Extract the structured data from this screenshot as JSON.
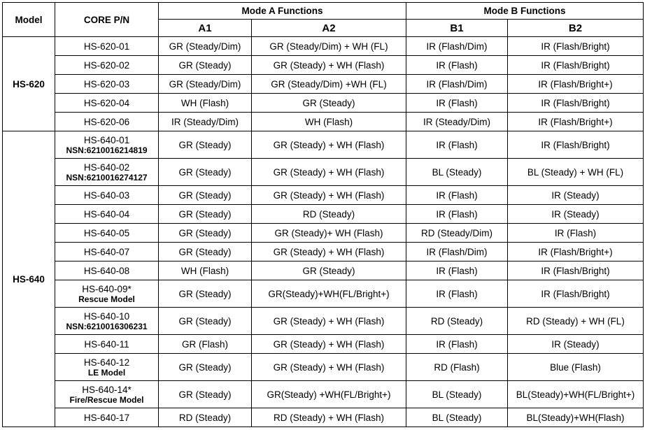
{
  "headers": {
    "model": "Model",
    "core_pn": "CORE P/N",
    "mode_a": "Mode A Functions",
    "mode_b": "Mode B Functions",
    "a1": "A1",
    "a2": "A2",
    "b1": "B1",
    "b2": "B2"
  },
  "groups": [
    {
      "model": "HS-620",
      "rows": [
        {
          "pn": "HS-620-01",
          "sub": "",
          "a1": "GR (Steady/Dim)",
          "a2": "GR (Steady/Dim) + WH (FL)",
          "b1": "IR (Flash/Dim)",
          "b2": "IR (Flash/Bright)"
        },
        {
          "pn": "HS-620-02",
          "sub": "",
          "a1": "GR (Steady)",
          "a2": "GR (Steady) + WH (Flash)",
          "b1": "IR (Flash)",
          "b2": "IR (Flash/Bright)"
        },
        {
          "pn": "HS-620-03",
          "sub": "",
          "a1": "GR (Steady/Dim)",
          "a2": "GR (Steady/Dim) +WH (FL)",
          "b1": "IR (Flash/Dim)",
          "b2": "IR (Flash/Bright+)"
        },
        {
          "pn": "HS-620-04",
          "sub": "",
          "a1": "WH (Flash)",
          "a2": "GR (Steady)",
          "b1": "IR (Flash)",
          "b2": "IR (Flash/Bright)"
        },
        {
          "pn": "HS-620-06",
          "sub": "",
          "a1": "IR (Steady/Dim)",
          "a2": "WH (Flash)",
          "b1": "IR (Steady/Dim)",
          "b2": "IR (Flash/Bright+)"
        }
      ]
    },
    {
      "model": "HS-640",
      "rows": [
        {
          "pn": "HS-640-01",
          "sub": "NSN:6210016214819",
          "a1": "GR (Steady)",
          "a2": "GR (Steady) + WH (Flash)",
          "b1": "IR (Flash)",
          "b2": "IR (Flash/Bright)"
        },
        {
          "pn": "HS-640-02",
          "sub": "NSN:6210016274127",
          "a1": "GR (Steady)",
          "a2": "GR (Steady) + WH (Flash)",
          "b1": "BL (Steady)",
          "b2": "BL (Steady) + WH (FL)"
        },
        {
          "pn": "HS-640-03",
          "sub": "",
          "a1": "GR (Steady)",
          "a2": "GR (Steady) + WH (Flash)",
          "b1": "IR (Flash)",
          "b2": "IR (Steady)"
        },
        {
          "pn": "HS-640-04",
          "sub": "",
          "a1": "GR (Steady)",
          "a2": "RD (Steady)",
          "b1": "IR (Flash)",
          "b2": "IR (Steady)"
        },
        {
          "pn": "HS-640-05",
          "sub": "",
          "a1": "GR (Steady)",
          "a2": "GR (Steady)+ WH (Flash)",
          "b1": "RD (Steady/Dim)",
          "b2": "IR (Flash)"
        },
        {
          "pn": "HS-640-07",
          "sub": "",
          "a1": "GR (Steady)",
          "a2": "GR (Steady) + WH (Flash)",
          "b1": "IR (Flash/Dim)",
          "b2": "IR (Flash/Bright+)"
        },
        {
          "pn": "HS-640-08",
          "sub": "",
          "a1": "WH  (Flash)",
          "a2": "GR (Steady)",
          "b1": "IR (Flash)",
          "b2": "IR (Flash/Bright)"
        },
        {
          "pn": "HS-640-09*",
          "sub": "Rescue Model",
          "a1": "GR (Steady)",
          "a2": "GR(Steady)+WH(FL/Bright+)",
          "b1": "IR (Flash)",
          "b2": "IR (Flash/Bright)"
        },
        {
          "pn": "HS-640-10",
          "sub": "NSN:6210016306231",
          "a1": "GR (Steady)",
          "a2": "GR (Steady) + WH (Flash)",
          "b1": "RD (Steady)",
          "b2": "RD (Steady) + WH (FL)"
        },
        {
          "pn": "HS-640-11",
          "sub": "",
          "a1": "GR (Flash)",
          "a2": "GR (Steady) + WH (Flash)",
          "b1": "IR (Flash)",
          "b2": "IR (Steady)"
        },
        {
          "pn": "HS-640-12",
          "sub": "LE Model",
          "a1": "GR (Steady)",
          "a2": "GR (Steady) + WH (Flash)",
          "b1": "RD (Flash)",
          "b2": "Blue (Flash)"
        },
        {
          "pn": "HS-640-14*",
          "sub": "Fire/Rescue Model",
          "a1": "GR (Steady)",
          "a2": "GR(Steady) +WH(FL/Bright+)",
          "b1": "BL (Steady)",
          "b2": "BL(Steady)+WH(FL/Bright+)"
        },
        {
          "pn": "HS-640-17",
          "sub": "",
          "a1": "RD (Steady)",
          "a2": "RD (Steady) + WH (Flash)",
          "b1": "BL (Steady)",
          "b2": "BL(Steady)+WH(Flash)"
        }
      ]
    }
  ]
}
